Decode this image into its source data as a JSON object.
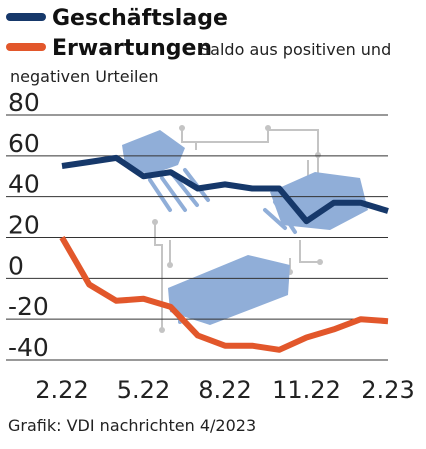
{
  "chart_data": {
    "type": "line",
    "x": [
      "2.22",
      "3.22",
      "4.22",
      "5.22",
      "6.22",
      "7.22",
      "8.22",
      "9.22",
      "10.22",
      "11.22",
      "12.22",
      "1.23",
      "2.23"
    ],
    "xtick_labels": [
      "2.22",
      "5.22",
      "8.22",
      "11.22",
      "2.23"
    ],
    "ylim": [
      -40,
      80
    ],
    "yticks": [
      "80",
      "60",
      "40",
      "20",
      "0",
      "-20",
      "-40"
    ],
    "grid": true,
    "legend_position": "top-left",
    "legend_note": "Saldo aus positiven und negativen Urteilen",
    "source": "Grafik: VDI nachrichten 4/2023",
    "series": [
      {
        "name": "Geschäftslage",
        "color": "#16386a",
        "values": [
          55,
          57,
          59,
          50,
          52,
          44,
          46,
          44,
          44,
          28,
          37,
          37,
          33
        ]
      },
      {
        "name": "Erwartungen",
        "color": "#e2572b",
        "values": [
          20,
          -3,
          -11,
          -10,
          -14,
          -28,
          -33,
          -33,
          -35,
          -29,
          -25,
          -20,
          -21
        ]
      }
    ]
  }
}
